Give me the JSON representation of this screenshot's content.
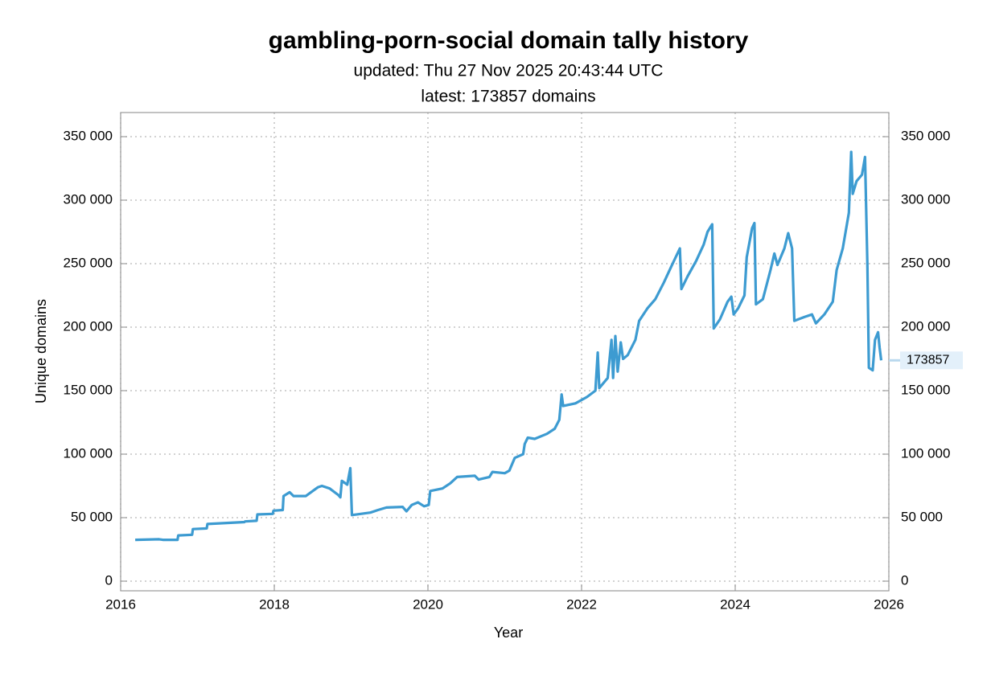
{
  "chart_data": {
    "type": "line",
    "title": "gambling-porn-social domain tally history",
    "subtitle": [
      "updated: Thu 27 Nov 2025 20:43:44 UTC",
      "latest: 173857 domains"
    ],
    "x_label": "Year",
    "y_label": "Unique domains",
    "xlim": [
      2016,
      2026
    ],
    "xticks": [
      2016,
      2018,
      2020,
      2022,
      2024,
      2026
    ],
    "ylim": [
      -7600,
      369000
    ],
    "yticks": [
      {
        "value": 0,
        "label": "0"
      },
      {
        "value": 50000,
        "label": "50 000"
      },
      {
        "value": 100000,
        "label": "100 000"
      },
      {
        "value": 150000,
        "label": "150 000"
      },
      {
        "value": 200000,
        "label": "200 000"
      },
      {
        "value": 250000,
        "label": "250 000"
      },
      {
        "value": 300000,
        "label": "300 000"
      },
      {
        "value": 350000,
        "label": "350 000"
      }
    ],
    "grid": true,
    "mirror_y_axis": true,
    "x": [
      2016.19,
      2016.5,
      2016.55,
      2016.74,
      2016.75,
      2016.93,
      2016.94,
      2017.12,
      2017.13,
      2017.61,
      2017.62,
      2017.77,
      2017.78,
      2017.98,
      2017.99,
      2018.11,
      2018.12,
      2018.2,
      2018.25,
      2018.41,
      2018.57,
      2018.62,
      2018.72,
      2018.83,
      2018.86,
      2018.88,
      2018.95,
      2018.99,
      2019.01,
      2019.25,
      2019.35,
      2019.46,
      2019.67,
      2019.72,
      2019.79,
      2019.87,
      2019.95,
      2020.01,
      2020.03,
      2020.19,
      2020.29,
      2020.38,
      2020.61,
      2020.66,
      2020.8,
      2020.84,
      2021.0,
      2021.06,
      2021.13,
      2021.24,
      2021.26,
      2021.3,
      2021.39,
      2021.55,
      2021.65,
      2021.71,
      2021.74,
      2021.76,
      2021.92,
      2022.07,
      2022.18,
      2022.21,
      2022.23,
      2022.34,
      2022.39,
      2022.41,
      2022.44,
      2022.47,
      2022.51,
      2022.54,
      2022.6,
      2022.7,
      2022.75,
      2022.86,
      2022.96,
      2023.07,
      2023.17,
      2023.28,
      2023.3,
      2023.38,
      2023.49,
      2023.59,
      2023.64,
      2023.7,
      2023.72,
      2023.8,
      2023.9,
      2023.95,
      2023.98,
      2024.04,
      2024.12,
      2024.15,
      2024.22,
      2024.25,
      2024.27,
      2024.36,
      2024.46,
      2024.51,
      2024.55,
      2024.64,
      2024.69,
      2024.74,
      2024.77,
      2024.9,
      2025.0,
      2025.05,
      2025.16,
      2025.27,
      2025.32,
      2025.4,
      2025.48,
      2025.51,
      2025.53,
      2025.58,
      2025.65,
      2025.69,
      2025.72,
      2025.74,
      2025.79,
      2025.82,
      2025.86,
      2025.88,
      2025.9
    ],
    "series": [
      {
        "name": "Unique domains",
        "color": "#3d9bd1",
        "values": [
          32500,
          33000,
          32500,
          32500,
          36000,
          36500,
          41000,
          41500,
          45000,
          46500,
          47000,
          47500,
          52500,
          53000,
          55500,
          56000,
          67000,
          70000,
          67000,
          67000,
          74000,
          75000,
          73000,
          68000,
          66000,
          79000,
          76000,
          89000,
          52000,
          54000,
          56000,
          58000,
          58500,
          55000,
          60000,
          62000,
          59000,
          60000,
          71000,
          73000,
          77000,
          82000,
          83000,
          80000,
          82000,
          86000,
          85000,
          87000,
          97000,
          100000,
          108000,
          113000,
          112000,
          116000,
          120000,
          127000,
          147000,
          138000,
          140000,
          145000,
          150000,
          180000,
          152000,
          160000,
          190000,
          160000,
          193000,
          165000,
          188000,
          175000,
          178000,
          190000,
          205000,
          215000,
          222000,
          235000,
          248000,
          262000,
          230000,
          240000,
          252000,
          265000,
          275000,
          281000,
          199000,
          206000,
          220000,
          224000,
          210000,
          215000,
          225000,
          255000,
          278000,
          282000,
          218000,
          222000,
          245000,
          258000,
          249000,
          262000,
          274000,
          262000,
          205000,
          208000,
          210000,
          203000,
          210000,
          220000,
          245000,
          262000,
          290000,
          338000,
          305000,
          315000,
          320000,
          334000,
          250000,
          168000,
          166000,
          190000,
          196000,
          184000,
          173857
        ]
      }
    ],
    "annotations": [
      {
        "x": 2025.9,
        "y": 173857
      }
    ]
  }
}
